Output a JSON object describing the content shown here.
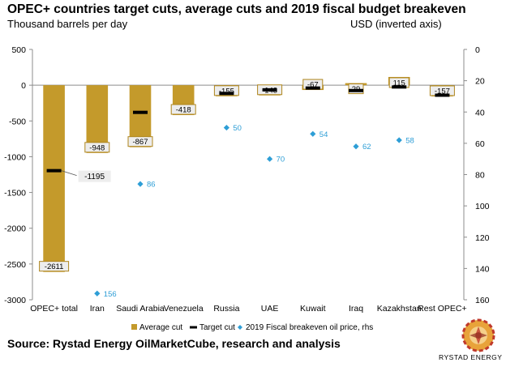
{
  "header": {
    "title": "OPEC+ countries target cuts, average cuts and 2019 fiscal budget breakeven",
    "left_unit": "Thousand barrels per day",
    "right_unit": "USD (inverted axis)"
  },
  "footer": {
    "source": "Source: Rystad Energy OilMarketCube, research and analysis",
    "brand": "RYSTAD ENERGY"
  },
  "colors": {
    "bar": "#C49A2B",
    "bar_edge": "#AE851D",
    "target": "#000000",
    "marker": "#2E9ED6",
    "label_box": "#EDEDED"
  },
  "chart_data": {
    "type": "bar",
    "categories": [
      "OPEC+ total",
      "Iran",
      "Saudi Arabia",
      "Venezuela",
      "Russia",
      "UAE",
      "Kuwait",
      "Iraq",
      "Kazakhstan",
      "Rest OPEC+"
    ],
    "series": [
      {
        "name": "Average cut",
        "type": "bar",
        "axis": "left",
        "values": [
          -2611,
          -948,
          -867,
          -418,
          -155,
          -143,
          -67,
          29,
          115,
          -157
        ],
        "labels": [
          "-2611",
          "-948",
          "-867",
          "-418",
          "-155",
          "-143",
          "-67",
          "29",
          "115",
          "-157"
        ]
      },
      {
        "name": "Target cut",
        "type": "marker",
        "axis": "left",
        "values": [
          -1195,
          null,
          -380,
          null,
          -115,
          -65,
          -40,
          -75,
          -25,
          -140
        ],
        "labels": [
          "-1195",
          "",
          "",
          "",
          "",
          "",
          "",
          "",
          "",
          ""
        ]
      },
      {
        "name": "2019 Fiscal breakeven oil price, rhs",
        "type": "scatter",
        "axis": "right",
        "values": [
          null,
          156,
          86,
          null,
          50,
          70,
          54,
          62,
          58,
          null
        ],
        "labels": [
          "",
          "156",
          "86",
          "",
          "50",
          "70",
          "54",
          "62",
          "58",
          ""
        ]
      }
    ],
    "left_axis": {
      "min": -3000,
      "max": 500,
      "ticks": [
        "500",
        "0",
        "-500",
        "-1000",
        "-1500",
        "-2000",
        "-2500",
        "-3000"
      ]
    },
    "right_axis": {
      "min": 0,
      "max": 160,
      "inverted": true,
      "ticks": [
        "0",
        "20",
        "40",
        "60",
        "80",
        "100",
        "120",
        "140",
        "160"
      ]
    },
    "legend": [
      "Average cut",
      "Target cut",
      "2019 Fiscal breakeven oil price, rhs"
    ],
    "legend_position": "bottom",
    "grid": false
  }
}
